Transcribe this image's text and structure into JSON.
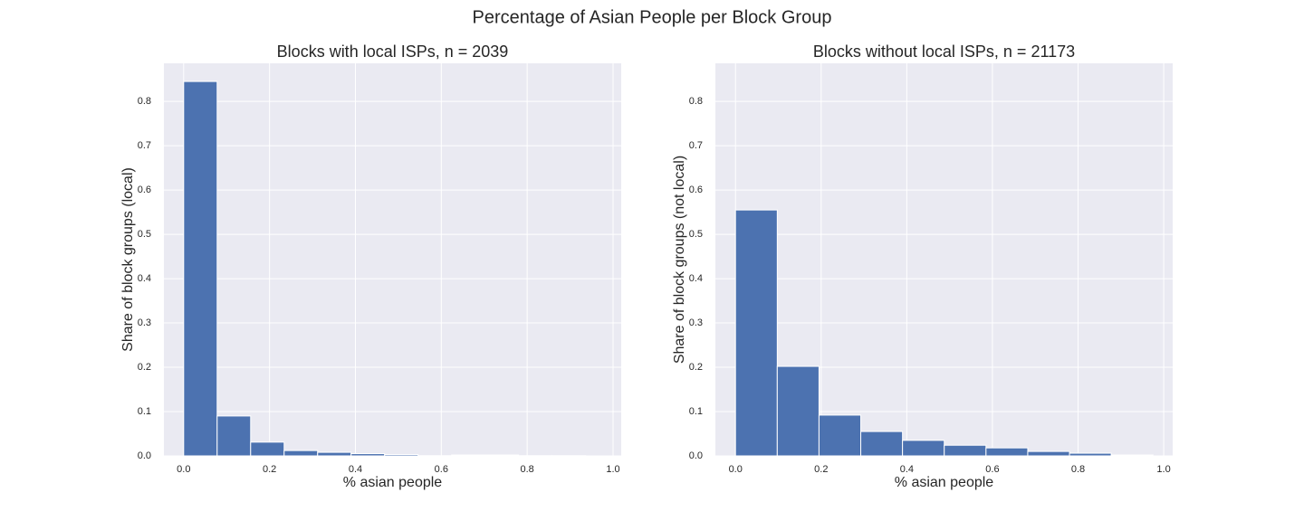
{
  "title": "Percentage of Asian People per Block Group",
  "chart_data": [
    {
      "type": "histogram",
      "title": "Blocks with local ISPs, n = 2039",
      "xlabel": "% asian people",
      "ylabel": "Share of block groups (local)",
      "bins": [
        0,
        0.078,
        0.156,
        0.234,
        0.312,
        0.39,
        0.468,
        0.546,
        0.624,
        0.702,
        0.78,
        0.858,
        0.936
      ],
      "values": [
        0.845,
        0.09,
        0.031,
        0.012,
        0.008,
        0.005,
        0.003,
        0.0005,
        0.002,
        0.002,
        0.0005,
        0.0005
      ],
      "color": "#4c72b0",
      "grid": true,
      "xlim": [
        -0.046,
        1.019
      ],
      "ylim": [
        0,
        0.886
      ],
      "xticks": [
        {
          "value": 0,
          "label": "0.0"
        },
        0.2,
        0.4,
        0.6,
        0.8,
        {
          "value": 1,
          "label": "1.0"
        }
      ],
      "yticks": [
        {
          "value": 0,
          "label": "0.0"
        },
        0.1,
        0.2,
        0.3,
        0.4,
        0.5,
        0.6,
        0.7,
        0.8
      ]
    },
    {
      "type": "histogram",
      "title": "Blocks without local ISPs, n = 21173",
      "xlabel": "% asian people",
      "ylabel": "Share of block groups (not local)",
      "bins": [
        0,
        0.0975,
        0.195,
        0.2925,
        0.39,
        0.4875,
        0.585,
        0.6825,
        0.78,
        0.8775,
        0.975
      ],
      "values": [
        0.555,
        0.202,
        0.092,
        0.055,
        0.035,
        0.024,
        0.018,
        0.01,
        0.006,
        0.002
      ],
      "color": "#4c72b0",
      "grid": true,
      "xlim": [
        -0.047,
        1.021
      ],
      "ylim": [
        0,
        0.886
      ],
      "xticks": [
        {
          "value": 0,
          "label": "0.0"
        },
        0.2,
        0.4,
        0.6,
        0.8,
        {
          "value": 1,
          "label": "1.0"
        }
      ],
      "yticks": [
        {
          "value": 0,
          "label": "0.0"
        },
        0.1,
        0.2,
        0.3,
        0.4,
        0.5,
        0.6,
        0.7,
        0.8
      ]
    }
  ]
}
